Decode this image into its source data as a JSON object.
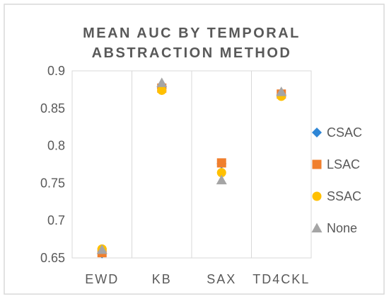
{
  "chart_data": {
    "type": "scatter",
    "title_lines": [
      "MEAN AUC BY TEMPORAL",
      "ABSTRACTION METHOD"
    ],
    "categories": [
      "EWD",
      "KB",
      "SAX",
      "TD4CKL"
    ],
    "y_ticks": [
      "0.65",
      "0.7",
      "0.75",
      "0.8",
      "0.85",
      "0.9"
    ],
    "ylim": [
      0.65,
      0.9
    ],
    "grid": "vertical",
    "legend_position": "right",
    "series": [
      {
        "name": "CSAC",
        "marker": "diamond",
        "color": "#2E86D6",
        "values": [
          0.656,
          0.877,
          0.776,
          0.868
        ]
      },
      {
        "name": "LSAC",
        "marker": "square",
        "color": "#F07F2D",
        "values": [
          0.657,
          0.877,
          0.777,
          0.869
        ]
      },
      {
        "name": "SSAC",
        "marker": "circle",
        "color": "#FFC000",
        "values": [
          0.662,
          0.874,
          0.764,
          0.866
        ]
      },
      {
        "name": "None",
        "marker": "triangle",
        "color": "#A5A5A5",
        "values": [
          0.661,
          0.884,
          0.754,
          0.872
        ]
      }
    ]
  }
}
